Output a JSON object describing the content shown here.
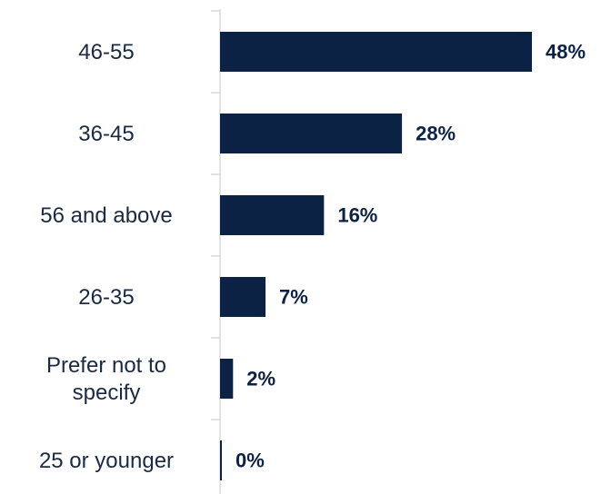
{
  "chart_data": {
    "type": "bar",
    "orientation": "horizontal",
    "categories": [
      "46-55",
      "36-45",
      "56 and above",
      "26-35",
      "Prefer not to\nspecify",
      "25 or younger"
    ],
    "values": [
      48,
      28,
      16,
      7,
      2,
      0
    ],
    "value_labels": [
      "48%",
      "28%",
      "16%",
      "7%",
      "2%",
      "0%"
    ],
    "unit": "%",
    "xlim": [
      0,
      48
    ],
    "bar_color": "#0b2244",
    "axis_color": "#d9d9d9",
    "grid": false,
    "legend": "none"
  }
}
